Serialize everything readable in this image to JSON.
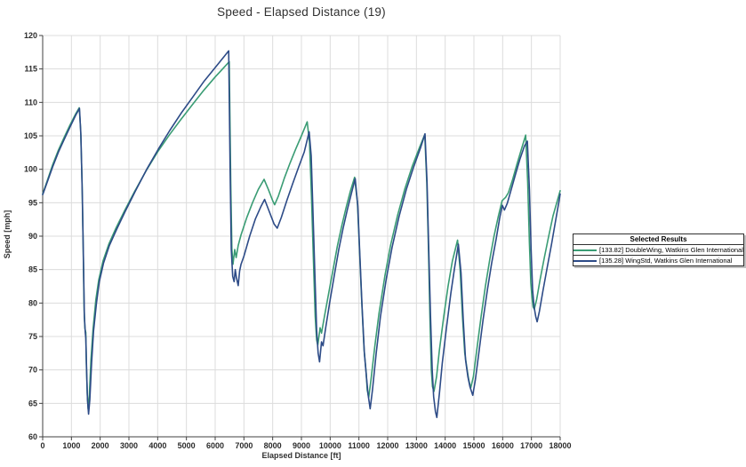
{
  "window": {
    "background": "#ffffff"
  },
  "chart_data": {
    "type": "line",
    "title": "Speed - Elapsed Distance (19)",
    "xlabel": "Elapsed Distance [ft]",
    "ylabel": "Speed [mph]",
    "xlim": [
      0,
      18000
    ],
    "ylim": [
      60,
      120
    ],
    "x_tick_step": 1000,
    "y_tick_step": 5,
    "grid": true,
    "legend_position": "right-outside",
    "legend_title": "Selected Results",
    "colors": {
      "grid": "#dcdcdc",
      "axis": "#404040",
      "tick_text": "#2b2b2b",
      "title_text": "#303030"
    },
    "series": [
      {
        "name": "[133.82] DoubleWing, Watkins Glen International",
        "color": "#3a9c74",
        "points": [
          [
            0,
            96.3
          ],
          [
            150,
            98.2
          ],
          [
            350,
            100.7
          ],
          [
            550,
            102.9
          ],
          [
            750,
            104.8
          ],
          [
            950,
            106.6
          ],
          [
            1150,
            108.3
          ],
          [
            1270,
            109.2
          ],
          [
            1320,
            106
          ],
          [
            1370,
            98
          ],
          [
            1410,
            88
          ],
          [
            1440,
            79
          ],
          [
            1470,
            76.2
          ],
          [
            1500,
            75.6
          ],
          [
            1520,
            71
          ],
          [
            1550,
            66.5
          ],
          [
            1580,
            64.2
          ],
          [
            1620,
            66
          ],
          [
            1680,
            71.5
          ],
          [
            1750,
            76
          ],
          [
            1850,
            80.5
          ],
          [
            1950,
            83.5
          ],
          [
            2100,
            86.3
          ],
          [
            2300,
            88.8
          ],
          [
            2550,
            91.2
          ],
          [
            2850,
            93.8
          ],
          [
            3200,
            96.7
          ],
          [
            3600,
            99.8
          ],
          [
            4000,
            102.6
          ],
          [
            4400,
            105.1
          ],
          [
            4800,
            107.4
          ],
          [
            5200,
            109.6
          ],
          [
            5600,
            111.8
          ],
          [
            6000,
            113.8
          ],
          [
            6300,
            115.2
          ],
          [
            6490,
            116.1
          ],
          [
            6540,
            98
          ],
          [
            6580,
            88
          ],
          [
            6620,
            85.8
          ],
          [
            6680,
            88
          ],
          [
            6730,
            86.8
          ],
          [
            6800,
            88.6
          ],
          [
            6900,
            90.2
          ],
          [
            7100,
            92.8
          ],
          [
            7300,
            95
          ],
          [
            7500,
            97
          ],
          [
            7700,
            98.5
          ],
          [
            7850,
            97
          ],
          [
            8000,
            95.3
          ],
          [
            8070,
            94.7
          ],
          [
            8200,
            96
          ],
          [
            8400,
            98.6
          ],
          [
            8600,
            100.9
          ],
          [
            8800,
            103
          ],
          [
            9000,
            105
          ],
          [
            9200,
            107.1
          ],
          [
            9280,
            104
          ],
          [
            9350,
            96
          ],
          [
            9420,
            86
          ],
          [
            9480,
            78
          ],
          [
            9530,
            74.5
          ],
          [
            9570,
            73.7
          ],
          [
            9650,
            76.3
          ],
          [
            9700,
            75.5
          ],
          [
            9800,
            78
          ],
          [
            9950,
            81.5
          ],
          [
            10100,
            85
          ],
          [
            10250,
            88.5
          ],
          [
            10400,
            91.5
          ],
          [
            10550,
            94.2
          ],
          [
            10700,
            96.7
          ],
          [
            10850,
            98.8
          ],
          [
            10950,
            95
          ],
          [
            11020,
            88
          ],
          [
            11100,
            80
          ],
          [
            11180,
            73
          ],
          [
            11250,
            69.6
          ],
          [
            11290,
            67
          ],
          [
            11340,
            65.9
          ],
          [
            11420,
            68.5
          ],
          [
            11550,
            73.5
          ],
          [
            11700,
            78.5
          ],
          [
            11900,
            84
          ],
          [
            12100,
            88.6
          ],
          [
            12350,
            93.2
          ],
          [
            12600,
            97.1
          ],
          [
            12850,
            100.4
          ],
          [
            13100,
            103.2
          ],
          [
            13290,
            105.2
          ],
          [
            13360,
            98
          ],
          [
            13420,
            88
          ],
          [
            13470,
            78
          ],
          [
            13520,
            70
          ],
          [
            13560,
            67.5
          ],
          [
            13610,
            66.8
          ],
          [
            13700,
            69
          ],
          [
            13800,
            73
          ],
          [
            13950,
            78
          ],
          [
            14100,
            82.5
          ],
          [
            14250,
            86.3
          ],
          [
            14430,
            89.4
          ],
          [
            14520,
            85
          ],
          [
            14600,
            78
          ],
          [
            14680,
            72.5
          ],
          [
            14760,
            70.2
          ],
          [
            14820,
            68.5
          ],
          [
            14890,
            67.3
          ],
          [
            14980,
            69
          ],
          [
            15100,
            73
          ],
          [
            15250,
            78
          ],
          [
            15400,
            82.5
          ],
          [
            15550,
            86.5
          ],
          [
            15700,
            90
          ],
          [
            15850,
            93
          ],
          [
            15980,
            95.3
          ],
          [
            16100,
            95.8
          ],
          [
            16200,
            96.5
          ],
          [
            16350,
            98.5
          ],
          [
            16500,
            100.8
          ],
          [
            16650,
            103
          ],
          [
            16800,
            105.1
          ],
          [
            16870,
            98
          ],
          [
            16930,
            89
          ],
          [
            16980,
            83
          ],
          [
            17020,
            80.8
          ],
          [
            17060,
            79.4
          ],
          [
            17100,
            79.1
          ],
          [
            17180,
            80.5
          ],
          [
            17300,
            83.5
          ],
          [
            17450,
            86.8
          ],
          [
            17600,
            90
          ],
          [
            17750,
            93
          ],
          [
            17900,
            95.3
          ],
          [
            18000,
            96.8
          ]
        ]
      },
      {
        "name": "[135.28] WingStd, Watkins Glen International",
        "color": "#2d4b87",
        "points": [
          [
            0,
            96.2
          ],
          [
            150,
            98
          ],
          [
            350,
            100.4
          ],
          [
            550,
            102.6
          ],
          [
            750,
            104.5
          ],
          [
            950,
            106.3
          ],
          [
            1150,
            108.1
          ],
          [
            1280,
            109.1
          ],
          [
            1330,
            105
          ],
          [
            1380,
            96
          ],
          [
            1420,
            86
          ],
          [
            1450,
            78
          ],
          [
            1480,
            75.6
          ],
          [
            1500,
            74.8
          ],
          [
            1530,
            69.5
          ],
          [
            1560,
            65.5
          ],
          [
            1595,
            63.4
          ],
          [
            1640,
            65.5
          ],
          [
            1700,
            71
          ],
          [
            1770,
            75.8
          ],
          [
            1870,
            80
          ],
          [
            1970,
            83.2
          ],
          [
            2120,
            86
          ],
          [
            2320,
            88.6
          ],
          [
            2570,
            91
          ],
          [
            2870,
            93.7
          ],
          [
            3220,
            96.7
          ],
          [
            3620,
            100
          ],
          [
            4020,
            103
          ],
          [
            4420,
            105.8
          ],
          [
            4820,
            108.4
          ],
          [
            5220,
            110.8
          ],
          [
            5620,
            113.2
          ],
          [
            6020,
            115.3
          ],
          [
            6300,
            116.8
          ],
          [
            6470,
            117.7
          ],
          [
            6520,
            100
          ],
          [
            6560,
            88
          ],
          [
            6610,
            84
          ],
          [
            6660,
            83.2
          ],
          [
            6700,
            85
          ],
          [
            6740,
            83.8
          ],
          [
            6800,
            82.6
          ],
          [
            6850,
            84.8
          ],
          [
            6900,
            85.8
          ],
          [
            7000,
            87
          ],
          [
            7200,
            90
          ],
          [
            7400,
            92.6
          ],
          [
            7600,
            94.5
          ],
          [
            7720,
            95.5
          ],
          [
            7870,
            93.8
          ],
          [
            8050,
            91.8
          ],
          [
            8160,
            91.2
          ],
          [
            8300,
            92.8
          ],
          [
            8500,
            95.4
          ],
          [
            8700,
            97.9
          ],
          [
            8900,
            100.3
          ],
          [
            9100,
            102.6
          ],
          [
            9270,
            105.6
          ],
          [
            9340,
            102
          ],
          [
            9400,
            94
          ],
          [
            9470,
            84
          ],
          [
            9530,
            76
          ],
          [
            9580,
            72.5
          ],
          [
            9630,
            71.2
          ],
          [
            9700,
            74.2
          ],
          [
            9750,
            73.6
          ],
          [
            9850,
            76.5
          ],
          [
            10000,
            80.5
          ],
          [
            10150,
            84.3
          ],
          [
            10300,
            88
          ],
          [
            10450,
            91.2
          ],
          [
            10600,
            94
          ],
          [
            10750,
            96.6
          ],
          [
            10870,
            98.6
          ],
          [
            10960,
            94.5
          ],
          [
            11030,
            87.5
          ],
          [
            11110,
            79.5
          ],
          [
            11190,
            72.5
          ],
          [
            11260,
            69
          ],
          [
            11320,
            66.3
          ],
          [
            11390,
            64.2
          ],
          [
            11470,
            67
          ],
          [
            11600,
            72.5
          ],
          [
            11750,
            78
          ],
          [
            11950,
            83.6
          ],
          [
            12150,
            88.3
          ],
          [
            12400,
            93
          ],
          [
            12650,
            97
          ],
          [
            12900,
            100.3
          ],
          [
            13150,
            103.3
          ],
          [
            13300,
            105.3
          ],
          [
            13370,
            98
          ],
          [
            13430,
            88
          ],
          [
            13490,
            78
          ],
          [
            13550,
            70
          ],
          [
            13600,
            66
          ],
          [
            13660,
            63.8
          ],
          [
            13710,
            62.9
          ],
          [
            13800,
            66.5
          ],
          [
            13900,
            71
          ],
          [
            14050,
            76.5
          ],
          [
            14200,
            81.5
          ],
          [
            14330,
            85.3
          ],
          [
            14460,
            88.8
          ],
          [
            14550,
            84.5
          ],
          [
            14630,
            77.5
          ],
          [
            14710,
            71.5
          ],
          [
            14790,
            69
          ],
          [
            14860,
            67.5
          ],
          [
            14960,
            66.2
          ],
          [
            15050,
            68.5
          ],
          [
            15170,
            72.5
          ],
          [
            15320,
            77.5
          ],
          [
            15470,
            82
          ],
          [
            15620,
            86
          ],
          [
            15770,
            89.5
          ],
          [
            15900,
            92.8
          ],
          [
            15990,
            94.6
          ],
          [
            16060,
            93.9
          ],
          [
            16160,
            94.9
          ],
          [
            16300,
            97
          ],
          [
            16450,
            99.3
          ],
          [
            16600,
            101.5
          ],
          [
            16760,
            103.5
          ],
          [
            16860,
            104.2
          ],
          [
            16930,
            97
          ],
          [
            16990,
            88
          ],
          [
            17040,
            82
          ],
          [
            17090,
            79.5
          ],
          [
            17150,
            78
          ],
          [
            17200,
            77.2
          ],
          [
            17280,
            78.8
          ],
          [
            17400,
            81.8
          ],
          [
            17550,
            85.3
          ],
          [
            17700,
            88.8
          ],
          [
            17850,
            92.5
          ],
          [
            17950,
            95
          ],
          [
            18000,
            96.3
          ]
        ]
      }
    ]
  }
}
